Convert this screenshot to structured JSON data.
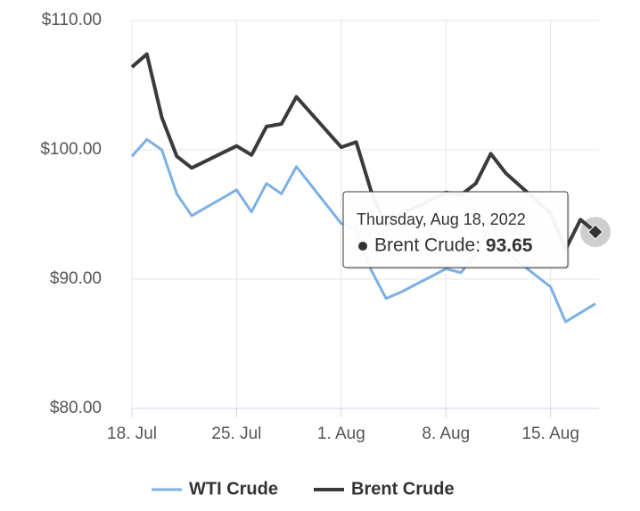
{
  "chart_data": {
    "type": "line",
    "x": [
      "2022-07-18",
      "2022-07-19",
      "2022-07-20",
      "2022-07-21",
      "2022-07-22",
      "2022-07-25",
      "2022-07-26",
      "2022-07-27",
      "2022-07-28",
      "2022-07-29",
      "2022-08-01",
      "2022-08-02",
      "2022-08-03",
      "2022-08-04",
      "2022-08-05",
      "2022-08-08",
      "2022-08-09",
      "2022-08-10",
      "2022-08-11",
      "2022-08-12",
      "2022-08-15",
      "2022-08-16",
      "2022-08-17",
      "2022-08-18"
    ],
    "series": [
      {
        "name": "WTI Crude",
        "color": "#7cb0e4",
        "values": [
          99.5,
          100.8,
          100.0,
          96.6,
          94.9,
          96.9,
          95.2,
          97.4,
          96.6,
          98.7,
          94.3,
          93.9,
          90.7,
          88.5,
          89.0,
          90.8,
          90.5,
          91.9,
          94.3,
          92.1,
          89.4,
          86.7,
          87.4,
          88.1
        ]
      },
      {
        "name": "Brent Crude",
        "color": "#3a3a3c",
        "values": [
          106.4,
          107.4,
          102.5,
          99.5,
          98.6,
          100.3,
          99.6,
          101.8,
          102.0,
          104.1,
          100.2,
          100.6,
          96.8,
          94.1,
          95.0,
          96.7,
          96.5,
          97.4,
          99.7,
          98.2,
          95.1,
          92.3,
          94.6,
          93.65
        ]
      }
    ],
    "xlim": [
      "2022-07-18",
      "2022-08-18"
    ],
    "xticks": [
      {
        "value": "2022-07-18",
        "label": "18. Jul"
      },
      {
        "value": "2022-07-25",
        "label": "25. Jul"
      },
      {
        "value": "2022-08-01",
        "label": "1. Aug"
      },
      {
        "value": "2022-08-08",
        "label": "8. Aug"
      },
      {
        "value": "2022-08-15",
        "label": "15. Aug"
      }
    ],
    "ylim": [
      80,
      110
    ],
    "yticks": [
      {
        "value": 80,
        "label": "$80.00"
      },
      {
        "value": 90,
        "label": "$90.00"
      },
      {
        "value": 100,
        "label": "$100.00"
      },
      {
        "value": 110,
        "label": "$110.00"
      }
    ],
    "grid": true,
    "legend": "bottom",
    "tooltip": {
      "date": "Thursday, Aug 18, 2022",
      "series": 1,
      "index": 23
    }
  }
}
